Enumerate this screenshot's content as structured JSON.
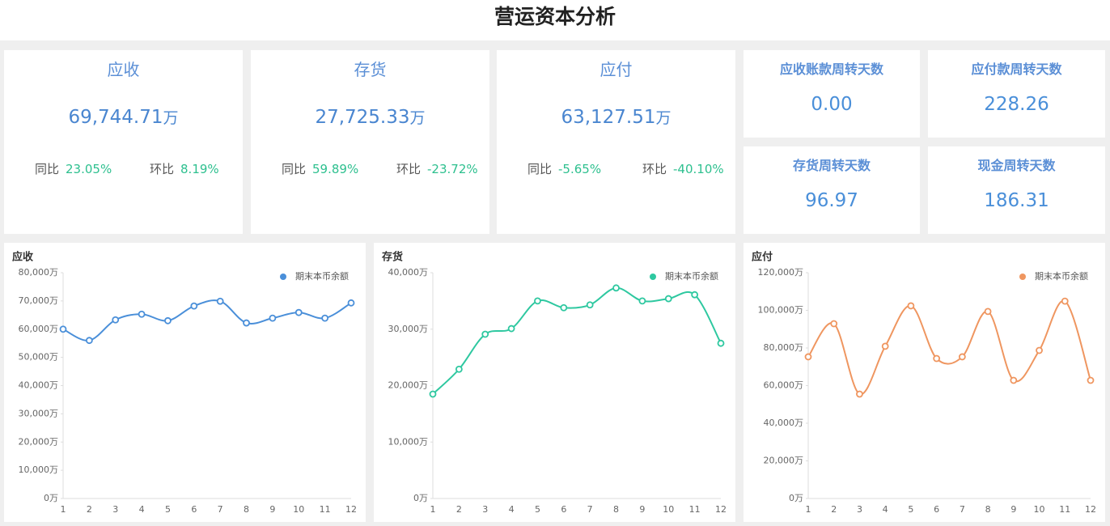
{
  "header": {
    "title": "营运资本分析"
  },
  "cards": [
    {
      "title": "应收",
      "value": "69,744.71",
      "unit": "万",
      "yoy_label": "同比",
      "yoy": "23.05%",
      "mom_label": "环比",
      "mom": "8.19%"
    },
    {
      "title": "存货",
      "value": "27,725.33",
      "unit": "万",
      "yoy_label": "同比",
      "yoy": "59.89%",
      "mom_label": "环比",
      "mom": "-23.72%"
    },
    {
      "title": "应付",
      "value": "63,127.51",
      "unit": "万",
      "yoy_label": "同比",
      "yoy": "-5.65%",
      "mom_label": "环比",
      "mom": "-40.10%"
    }
  ],
  "days": [
    {
      "title": "应收账款周转天数",
      "value": "0.00"
    },
    {
      "title": "应付款周转天数",
      "value": "228.26"
    },
    {
      "title": "存货周转天数",
      "value": "96.97"
    },
    {
      "title": "现金周转天数",
      "value": "186.31"
    }
  ],
  "chart_data": [
    {
      "type": "line",
      "title": "应收",
      "smooth": true,
      "grid": false,
      "legend": "top-right",
      "categories": [
        "1",
        "2",
        "3",
        "4",
        "5",
        "6",
        "7",
        "8",
        "9",
        "10",
        "11",
        "12"
      ],
      "series": [
        {
          "name": "期末本币余额",
          "color": "#4a8fd9",
          "values": [
            60000,
            56000,
            63300,
            65300,
            63000,
            68200,
            69900,
            62200,
            63900,
            65900,
            63900,
            69300
          ]
        }
      ],
      "ylim": [
        0,
        80000
      ],
      "yticks": [
        {
          "value": 0,
          "label": "0万"
        },
        {
          "value": 10000,
          "label": "10,000万"
        },
        {
          "value": 20000,
          "label": "20,000万"
        },
        {
          "value": 30000,
          "label": "30,000万"
        },
        {
          "value": 40000,
          "label": "40,000万"
        },
        {
          "value": 50000,
          "label": "50,000万"
        },
        {
          "value": 60000,
          "label": "60,000万"
        },
        {
          "value": 70000,
          "label": "70,000万"
        },
        {
          "value": 80000,
          "label": "80,000万"
        }
      ]
    },
    {
      "type": "line",
      "title": "存货",
      "smooth": true,
      "grid": false,
      "legend": "top-right",
      "categories": [
        "1",
        "2",
        "3",
        "4",
        "5",
        "6",
        "7",
        "8",
        "9",
        "10",
        "11",
        "12"
      ],
      "series": [
        {
          "name": "期末本币余额",
          "color": "#2ec8a0",
          "values": [
            18500,
            22900,
            29100,
            30100,
            35000,
            33800,
            34300,
            37300,
            35000,
            35400,
            36100,
            27500
          ]
        }
      ],
      "ylim": [
        0,
        40000
      ],
      "yticks": [
        {
          "value": 0,
          "label": "0万"
        },
        {
          "value": 10000,
          "label": "10,000万"
        },
        {
          "value": 20000,
          "label": "20,000万"
        },
        {
          "value": 30000,
          "label": "30,000万"
        },
        {
          "value": 40000,
          "label": "40,000万"
        }
      ]
    },
    {
      "type": "line",
      "title": "应付",
      "smooth": true,
      "grid": false,
      "legend": "top-right",
      "categories": [
        "1",
        "2",
        "3",
        "4",
        "5",
        "6",
        "7",
        "8",
        "9",
        "10",
        "11",
        "12"
      ],
      "series": [
        {
          "name": "期末本币余额",
          "color": "#ef9660",
          "values": [
            75300,
            92900,
            55500,
            80900,
            102400,
            74400,
            75300,
            99400,
            62800,
            78700,
            104900,
            62800
          ]
        }
      ],
      "ylim": [
        0,
        120000
      ],
      "yticks": [
        {
          "value": 0,
          "label": "0万"
        },
        {
          "value": 20000,
          "label": "20,000万"
        },
        {
          "value": 40000,
          "label": "40,000万"
        },
        {
          "value": 60000,
          "label": "60,000万"
        },
        {
          "value": 80000,
          "label": "80,000万"
        },
        {
          "value": 100000,
          "label": "100,000万"
        },
        {
          "value": 120000,
          "label": "120,000万"
        }
      ]
    }
  ]
}
